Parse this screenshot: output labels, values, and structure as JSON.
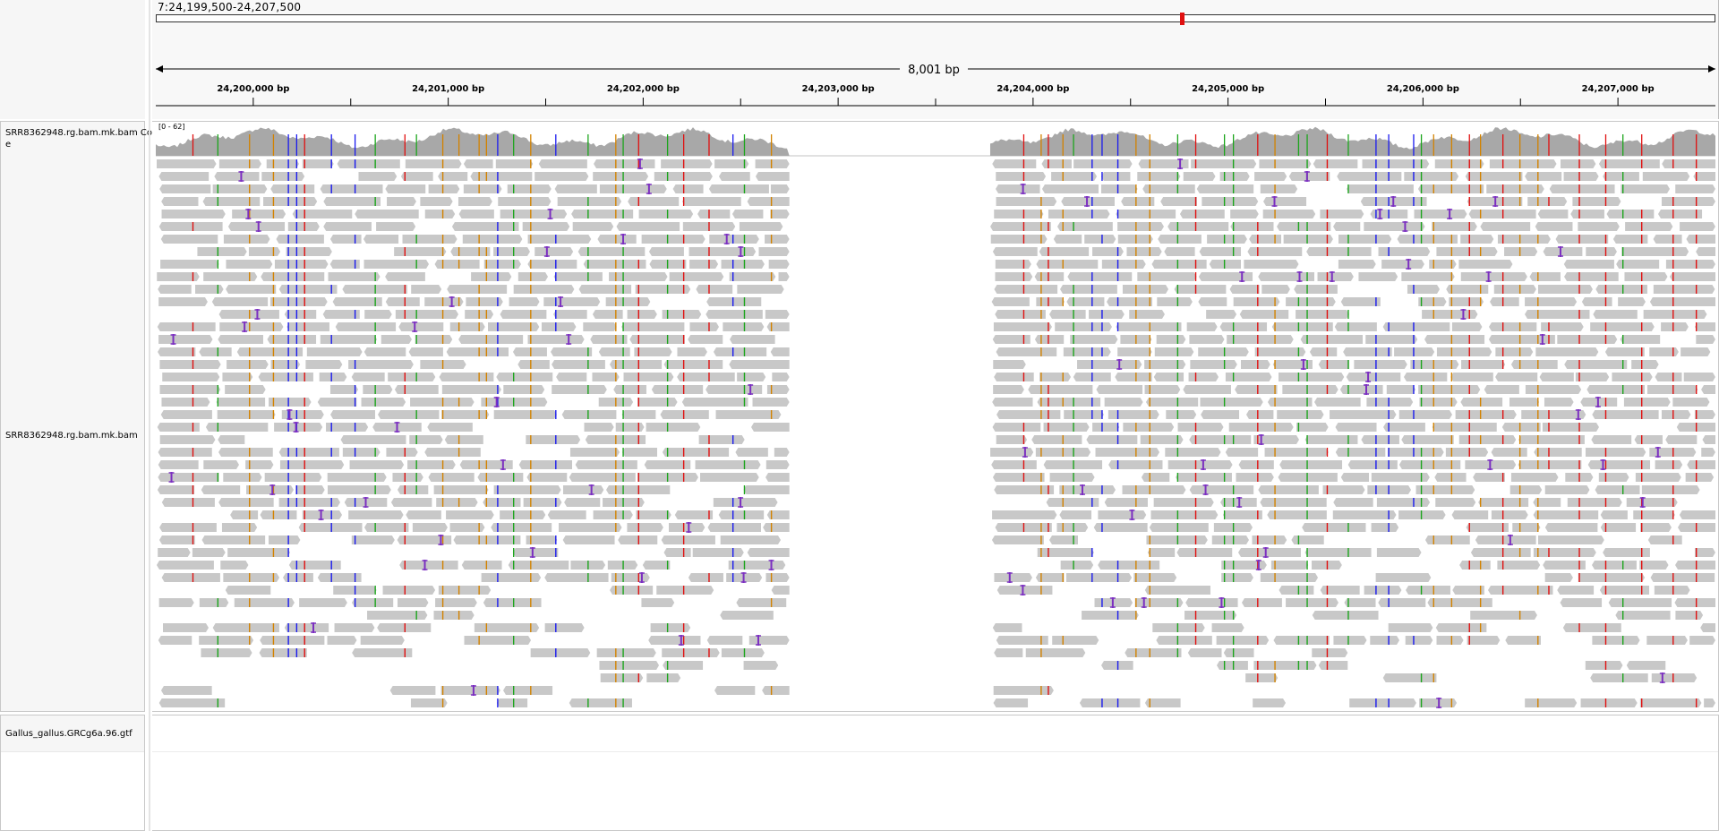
{
  "locus": "7:24,199,500-24,207,500",
  "span_label": "8,001 bp",
  "ruler": {
    "ticks": [
      {
        "label": "24,200,000 bp",
        "pos": 24200000
      },
      {
        "label": "24,201,000 bp",
        "pos": 24201000
      },
      {
        "label": "24,202,000 bp",
        "pos": 24202000
      },
      {
        "label": "24,203,000 bp",
        "pos": 24203000
      },
      {
        "label": "24,204,000 bp",
        "pos": 24204000
      },
      {
        "label": "24,205,000 bp",
        "pos": 24205000
      },
      {
        "label": "24,206,000 bp",
        "pos": 24206000
      },
      {
        "label": "24,207,000 bp",
        "pos": 24207000
      }
    ],
    "start": 24199500,
    "end": 24207500
  },
  "ideogram": {
    "current_view_color": "#e01010"
  },
  "tracks": {
    "coverage": {
      "name": "SRR8362948.rg.bam.mk.bam Coverage",
      "name_line1": "SRR8362948.rg.bam.mk.bam Cov",
      "name_line2": "e",
      "range": "[0 - 62]",
      "color": "#a8a8a8"
    },
    "alignments": {
      "name": "SRR8362948.rg.bam.mk.bam",
      "read_color": "#c8c8c8",
      "insertion_color": "#7b2fc0"
    },
    "annotation": {
      "name": "Gallus_gallus.GRCg6a.96.gtf"
    }
  },
  "base_colors": {
    "A": "#1ca51c",
    "C": "#1a1aee",
    "G": "#d28200",
    "T": "#e01010"
  },
  "covered_regions": [
    {
      "start": 24199500,
      "end": 24202750
    },
    {
      "start": 24203780,
      "end": 24207500
    }
  ]
}
